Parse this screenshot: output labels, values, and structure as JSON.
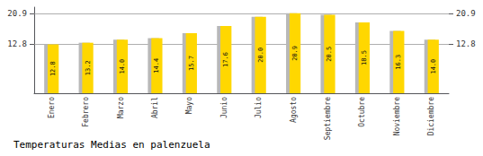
{
  "chart_data": {
    "type": "bar",
    "title": "Temperaturas Medias en palenzuela",
    "categories": [
      "Enero",
      "Febrero",
      "Marzo",
      "Abril",
      "Mayo",
      "Junio",
      "Julio",
      "Agosto",
      "Septiembre",
      "Octubre",
      "Noviembre",
      "Diciembre"
    ],
    "series": [
      {
        "color": "#B8B8B8",
        "values": [
          12.8,
          13.2,
          14.0,
          14.4,
          15.7,
          17.6,
          20.0,
          20.9,
          20.5,
          18.5,
          16.3,
          14.0
        ]
      },
      {
        "color": "#FFD700",
        "values": [
          12.8,
          13.2,
          14.0,
          14.4,
          15.7,
          17.6,
          20.0,
          20.9,
          20.5,
          18.5,
          16.3,
          14.0
        ],
        "data_labels": true,
        "value_labels": [
          "12.8",
          "13.2",
          "14.0",
          "14.4",
          "15.7",
          "17.6",
          "20.0",
          "20.9",
          "20.5",
          "18.5",
          "16.3",
          "14.0"
        ]
      }
    ],
    "ylim": [
      0,
      22.5
    ],
    "yticks": [
      12.8,
      20.9
    ],
    "grid": true
  }
}
